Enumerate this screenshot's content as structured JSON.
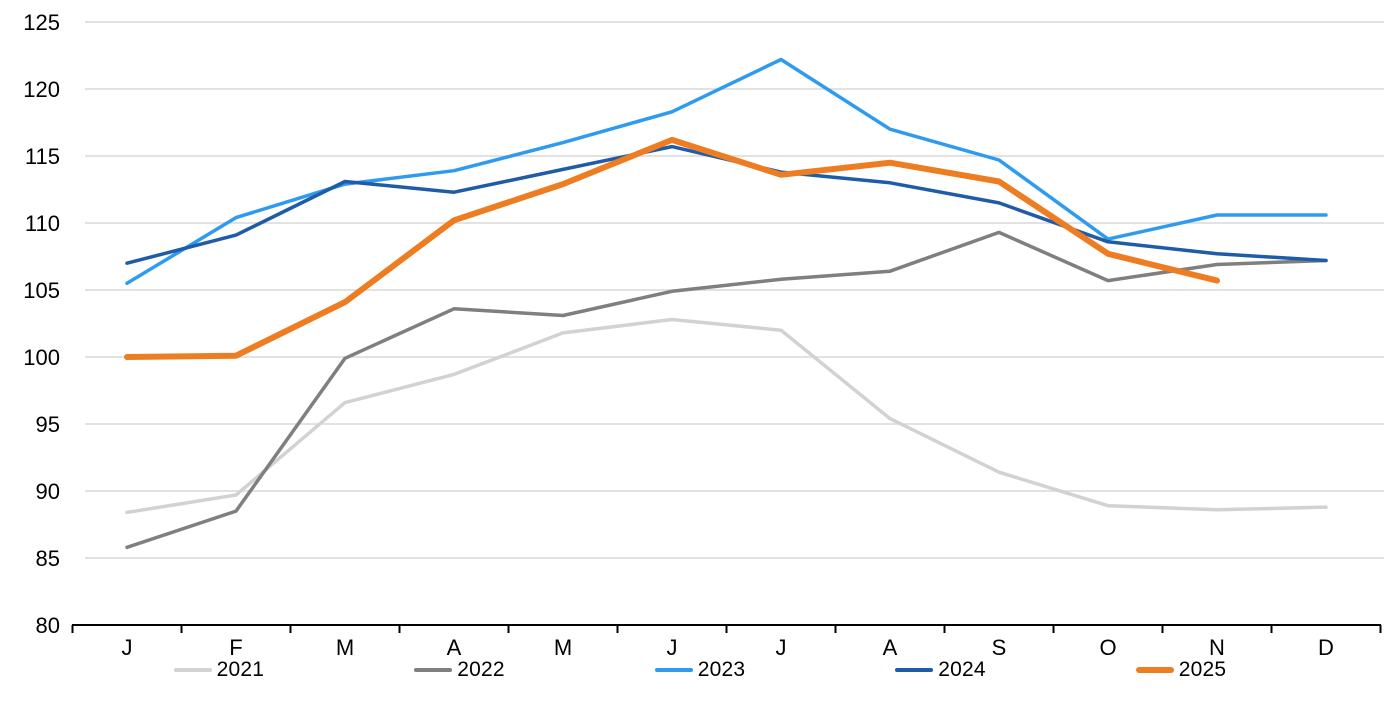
{
  "chart_data": {
    "type": "line",
    "title": "",
    "xlabel": "",
    "ylabel": "",
    "x_labels": [
      "J",
      "F",
      "M",
      "A",
      "M",
      "J",
      "J",
      "A",
      "S",
      "O",
      "N",
      "D"
    ],
    "y_ticks": [
      80,
      85,
      90,
      95,
      100,
      105,
      110,
      115,
      120,
      125
    ],
    "ylim": [
      80,
      125
    ],
    "grid": "horizontal-only",
    "gridline_color": "#d9d9d9",
    "axis_color": "#000000",
    "legend_position": "bottom-center",
    "series": [
      {
        "name": "2021",
        "color": "#d2d2d2",
        "line_width": 3.5,
        "values": [
          88.4,
          89.7,
          96.6,
          98.7,
          101.8,
          102.8,
          102.0,
          95.4,
          91.4,
          88.9,
          88.6,
          88.8
        ]
      },
      {
        "name": "2022",
        "color": "#7f7f7f",
        "line_width": 3.5,
        "values": [
          85.8,
          88.5,
          99.9,
          103.6,
          103.1,
          104.9,
          105.8,
          106.4,
          109.3,
          105.7,
          106.9,
          107.2
        ]
      },
      {
        "name": "2023",
        "color": "#2e9bf0",
        "line_width": 3.5,
        "values": [
          105.5,
          110.4,
          112.9,
          113.9,
          116.0,
          118.3,
          122.2,
          117.0,
          114.7,
          108.8,
          110.6,
          110.6
        ]
      },
      {
        "name": "2024",
        "color": "#1f5ca8",
        "line_width": 3.5,
        "values": [
          107.0,
          109.1,
          113.1,
          112.3,
          114.0,
          115.7,
          113.8,
          113.0,
          111.5,
          108.6,
          107.7,
          107.2
        ]
      },
      {
        "name": "2025",
        "color": "#ee7d22",
        "line_width": 6,
        "values": [
          100.0,
          100.1,
          104.1,
          110.2,
          112.9,
          116.2,
          113.6,
          114.5,
          113.1,
          107.7,
          105.7
        ]
      }
    ]
  }
}
